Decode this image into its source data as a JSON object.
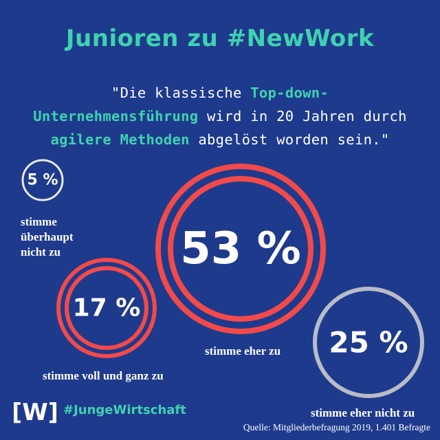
{
  "title": "Junioren zu #NewWork",
  "quote": {
    "part1": "\"Die klassische ",
    "hl1": "Top-down-",
    "hl2": "Unternehmensführung",
    "part2": " wird in 20 Jahren durch ",
    "hl3": "agilere Methoden",
    "part3": " abgelöst worden sein.\""
  },
  "chart_data": {
    "type": "bubble",
    "series": [
      {
        "label": "stimme überhaupt nicht zu",
        "value": 5,
        "value_label": "5 %",
        "ring_color": "#e8e8ee"
      },
      {
        "label": "stimme voll und ganz zu",
        "value": 17,
        "value_label": "17 %",
        "ring_color": "#f24a4a"
      },
      {
        "label": "stimme eher zu",
        "value": 53,
        "value_label": "53 %",
        "ring_color": "#f24a4a"
      },
      {
        "label": "stimme eher nicht zu",
        "value": 25,
        "value_label": "25 %",
        "ring_color": "#b8bcc8"
      }
    ]
  },
  "labels": {
    "l5_line1": "stimme",
    "l5_line2": "überhaupt",
    "l5_line3": "nicht zu",
    "l17": "stimme voll und ganz zu",
    "l53": "stimme eher zu",
    "l25": "stimme eher nicht zu"
  },
  "footer": {
    "logo_text": "[W]",
    "hashtag": "#JungeWirtschaft",
    "source": "Quelle: Mitgliederbefragung 2019, 1.401 Befragte"
  }
}
